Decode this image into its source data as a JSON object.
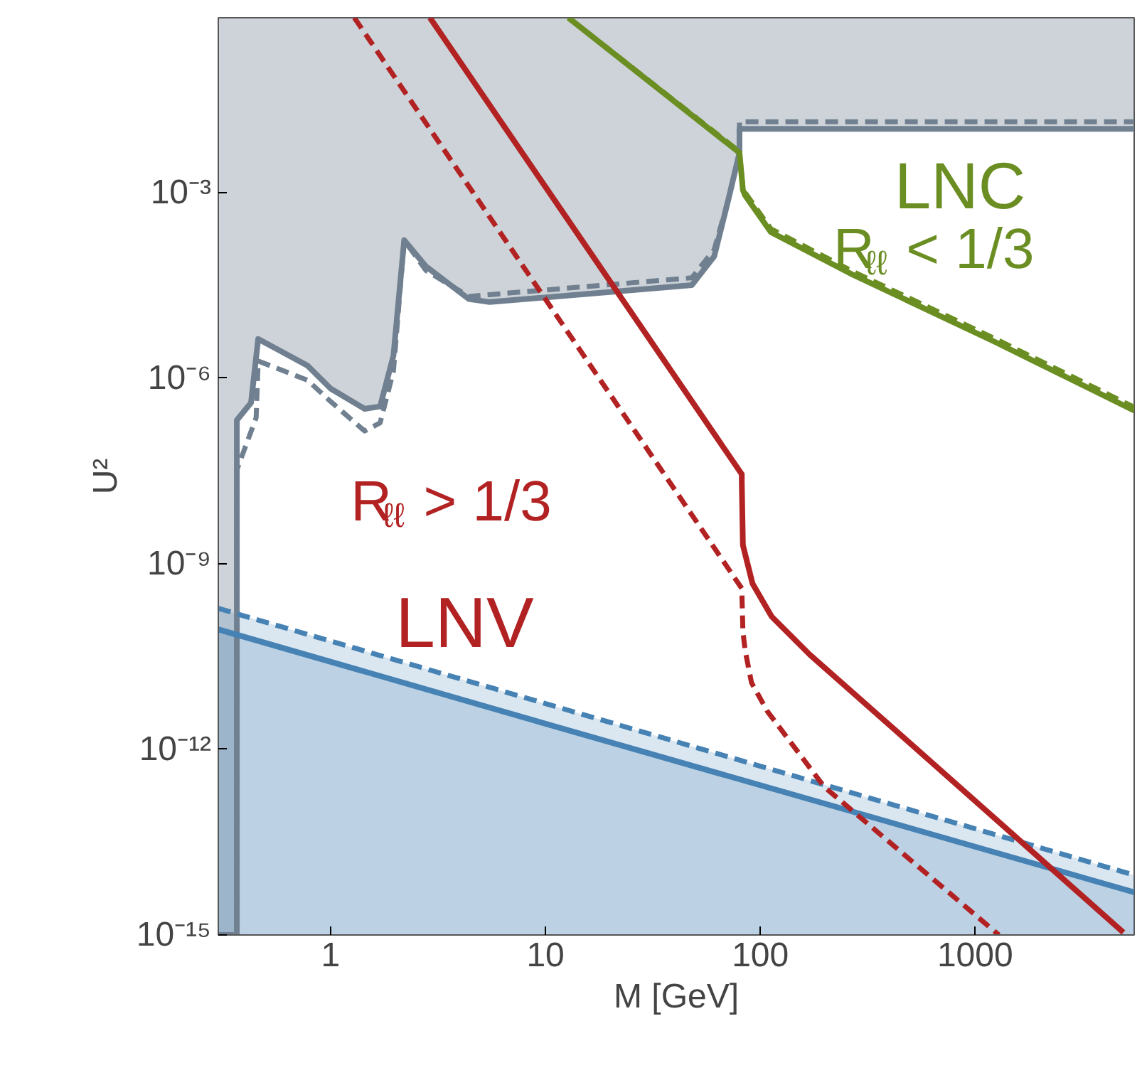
{
  "chart_data": {
    "type": "line",
    "xlabel": "M [GeV]",
    "ylabel": "U²",
    "log": "xy",
    "grid": false,
    "xlim": [
      0.3,
      5500
    ],
    "ylim": [
      1e-15,
      0.67
    ],
    "xticks": [
      1,
      10,
      100,
      1000
    ],
    "yticks": [
      {
        "value": 1e-15,
        "label": "10⁻¹⁵"
      },
      {
        "value": 1e-12,
        "label": "10⁻¹²"
      },
      {
        "value": 1e-09,
        "label": "10⁻⁹"
      },
      {
        "value": 1e-06,
        "label": "10⁻⁶"
      },
      {
        "value": 0.001,
        "label": "10⁻³"
      }
    ],
    "series": [
      {
        "color": "#708090",
        "line_style": "solid",
        "x": [
          0.3,
          0.366,
          0.366,
          0.426,
          0.46,
          0.78,
          1.0,
          1.44,
          1.7,
          1.96,
          2.2,
          2.78,
          4.4,
          5.5,
          48,
          61,
          71,
          80,
          80,
          5500
        ],
        "values": [
          1e-15,
          1e-15,
          2.1e-07,
          4e-07,
          4.3e-06,
          1.6e-06,
          6.8e-07,
          3.2e-07,
          3.5e-07,
          2.3e-06,
          0.00017,
          6.4e-05,
          1.9e-05,
          1.7e-05,
          3.2e-05,
          9.3e-05,
          0.00077,
          0.0044,
          0.0107,
          0.0107
        ],
        "lower": [
          1e-15,
          1e-15,
          2.1e-07,
          4e-07,
          4.3e-06,
          1.6e-06,
          6.8e-07,
          3.2e-07,
          3.5e-07,
          2.3e-06,
          0.00017,
          6.4e-05,
          1.9e-05,
          1.7e-05,
          3.2e-05,
          9.3e-05,
          0.00077,
          0.0044,
          0.0107,
          0.0107
        ],
        "upper": [
          0.67,
          0.67,
          0.67,
          0.67,
          0.67,
          0.67,
          0.67,
          0.67,
          0.67,
          0.67,
          0.67,
          0.67,
          0.67,
          0.67,
          0.67,
          0.67,
          0.67,
          0.67,
          0.67,
          0.67
        ]
      },
      {
        "color": "#708090",
        "line_style": "dashed",
        "x": [
          0.366,
          0.366,
          0.45,
          0.46,
          0.78,
          1.0,
          1.44,
          1.7,
          1.96,
          2.2,
          2.78,
          4.4,
          48,
          61,
          71,
          80,
          80,
          5500
        ],
        "values": [
          1e-15,
          3.3e-08,
          2.3e-07,
          1.9e-06,
          9.3e-07,
          4.2e-07,
          1.4e-07,
          1.9e-07,
          1.3e-06,
          0.00017,
          5.5e-05,
          2.1e-05,
          4.2e-05,
          0.00012,
          0.00077,
          0.0044,
          0.014,
          0.014
        ]
      },
      {
        "type": "area",
        "color": "#4682b4",
        "line_style": "solid",
        "x": [
          0.3,
          10,
          5500
        ],
        "values": [
          8.7e-11,
          2.6e-12,
          4.9e-15
        ]
      },
      {
        "type": "area",
        "color": "#4682b4",
        "line_style": "dashed",
        "x": [
          0.3,
          10,
          5500
        ],
        "values": [
          1.9e-10,
          5.5e-12,
          9.3e-15
        ]
      },
      {
        "color": "#6b8e23",
        "line_style": "solid",
        "x": [
          12.8,
          80,
          83,
          85,
          112,
          270,
          1230,
          5500
        ],
        "values": [
          0.67,
          0.0044,
          0.0011,
          0.0009,
          0.00023,
          4.7e-05,
          3.9e-06,
          3e-07
        ]
      },
      {
        "color": "#6b8e23",
        "line_style": "dashed",
        "x": [
          12.8,
          80,
          83,
          85,
          112,
          270,
          1230,
          5500
        ],
        "values": [
          0.67,
          0.0046,
          0.0012,
          0.001,
          0.00026,
          5.3e-05,
          4.4e-06,
          3.4e-07
        ]
      },
      {
        "color": "#b22222",
        "line_style": "solid",
        "x": [
          2.9,
          82,
          82,
          83,
          92,
          113,
          170,
          600,
          4900
        ],
        "values": [
          0.67,
          2.8e-08,
          2.1e-08,
          2e-09,
          4.8e-10,
          1.4e-10,
          3.4e-11,
          7.1e-13,
          1.1e-15
        ]
      },
      {
        "color": "#b22222",
        "line_style": "dashed",
        "x": [
          1.29,
          82,
          83,
          85,
          91,
          108,
          198,
          1290
        ],
        "values": [
          0.67,
          4e-10,
          8e-11,
          4e-11,
          1.2e-11,
          4.1e-12,
          2.5e-13,
          1e-15
        ]
      }
    ],
    "annotations": [
      "LNC",
      "R$_{ℓℓ}$ < 1/3",
      "R$_{ℓℓ}$ > 1/3",
      "LNV"
    ]
  }
}
